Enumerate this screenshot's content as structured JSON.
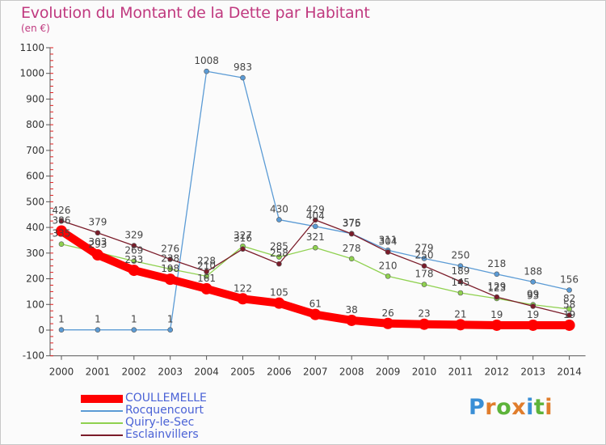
{
  "title": "Evolution du Montant de la Dette par Habitant",
  "unit": "(en €)",
  "brand": {
    "letters": [
      "P",
      "r",
      "o",
      "x",
      "i",
      "t",
      "i"
    ],
    "colors": [
      "#3a8fd6",
      "#e07d2c",
      "#5db33a",
      "#e07d2c",
      "#3a8fd6",
      "#5db33a",
      "#e07d2c"
    ]
  },
  "chart_data": {
    "type": "line",
    "title": "Evolution du Montant de la Dette par Habitant",
    "ylabel": "(en €)",
    "ylim": [
      -100,
      1100
    ],
    "yticks": [
      -100,
      0,
      100,
      200,
      300,
      400,
      500,
      600,
      700,
      800,
      900,
      1000,
      1100
    ],
    "x": [
      "2000",
      "2001",
      "2002",
      "2003",
      "2004",
      "2005",
      "2006",
      "2007",
      "2008",
      "2009",
      "2010",
      "2011",
      "2012",
      "2013",
      "2014"
    ],
    "grid": false,
    "legend_position": "bottom-left",
    "series": [
      {
        "name": "COULLEMELLE",
        "color": "#ff0000",
        "values": [
          386,
          293,
          233,
          198,
          161,
          122,
          105,
          61,
          38,
          26,
          23,
          21,
          19,
          19,
          19
        ],
        "labels": [
          "386",
          "293",
          "233",
          "198",
          "161",
          "122",
          "105",
          "61",
          "38",
          "26",
          "23",
          "21",
          "19",
          "19",
          "19"
        ]
      },
      {
        "name": "Rocquencourt",
        "color": "#5b9bd5",
        "values": [
          1,
          1,
          1,
          1,
          1008,
          983,
          430,
          404,
          376,
          311,
          279,
          250,
          218,
          188,
          156
        ],
        "labels": [
          "1",
          "1",
          "1",
          "1",
          "1008",
          "983",
          "430",
          "404",
          "376",
          "311",
          "279",
          "250",
          "218",
          "188",
          "156"
        ]
      },
      {
        "name": "Quiry-le-Sec",
        "color": "#8fd14f",
        "values": [
          335,
          303,
          269,
          238,
          210,
          327,
          285,
          321,
          278,
          210,
          178,
          145,
          123,
          99,
          82
        ],
        "labels": [
          "335",
          "303",
          "269",
          "238",
          "210",
          "327",
          "285",
          "321",
          "278",
          "210",
          "178",
          "145",
          "123",
          "99",
          "82"
        ]
      },
      {
        "name": "Esclainvillers",
        "color": "#7b1c2a",
        "values": [
          426,
          379,
          329,
          276,
          228,
          316,
          258,
          429,
          375,
          304,
          250,
          189,
          129,
          93,
          58
        ],
        "labels": [
          "426",
          "379",
          "329",
          "276",
          "228",
          "316",
          "258",
          "429",
          "375",
          "304",
          "250",
          "189",
          "129",
          "93",
          "58"
        ]
      }
    ]
  }
}
